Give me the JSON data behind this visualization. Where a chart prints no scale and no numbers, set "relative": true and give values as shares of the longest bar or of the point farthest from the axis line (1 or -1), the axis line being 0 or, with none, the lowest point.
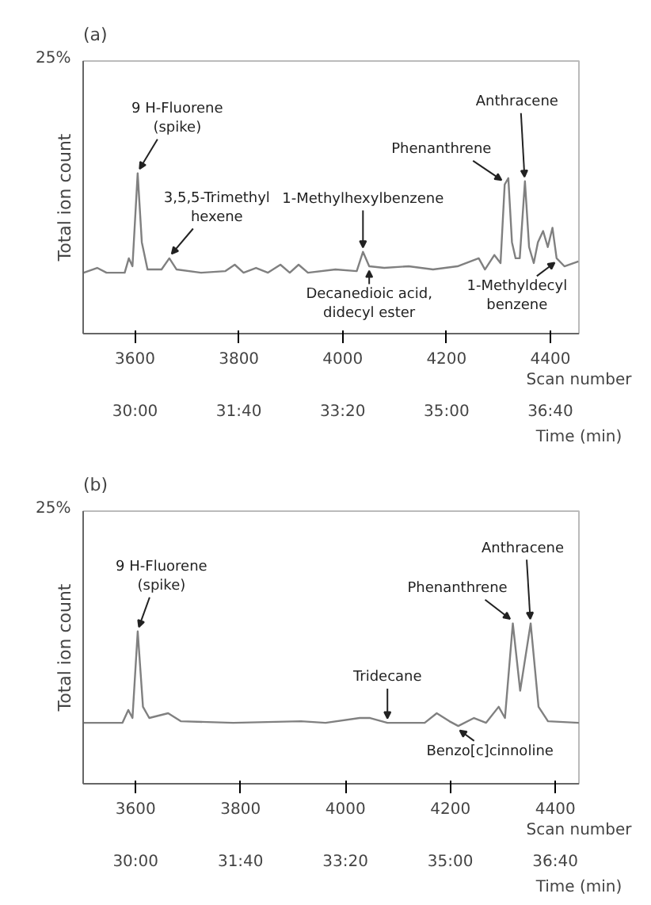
{
  "chart_data": [
    {
      "type": "line",
      "title": "(a)",
      "ylabel": "Total ion count",
      "xlabel": "Scan number",
      "x2label": "Time (min)",
      "relative": true,
      "grid": false,
      "xlim": [
        3500,
        4455
      ],
      "xticks": [
        3600,
        3800,
        4000,
        4200,
        4400
      ],
      "x2lim": [
        29.167,
        37.125
      ],
      "x2ticks": [
        {
          "value": 30,
          "label": "30:00"
        },
        {
          "value": 31.667,
          "label": "31:40"
        },
        {
          "value": 33.333,
          "label": "33:20"
        },
        {
          "value": 35,
          "label": "35:00"
        },
        {
          "value": 36.667,
          "label": "36:40"
        }
      ],
      "series": [
        {
          "color": "#808080",
          "x": [
            3501,
            3527,
            3545,
            3580,
            3588,
            3595,
            3605,
            3613,
            3624,
            3651,
            3666,
            3680,
            3727,
            3774,
            3792,
            3809,
            3833,
            3856,
            3880,
            3898,
            3915,
            3933,
            3986,
            4027,
            4039,
            4051,
            4080,
            4127,
            4174,
            4221,
            4262,
            4274,
            4292,
            4304,
            4312,
            4319,
            4326,
            4333,
            4341,
            4351,
            4359,
            4368,
            4376,
            4386,
            4395,
            4404,
            4412,
            4427,
            4454
          ],
          "values": [
            0.38,
            0.41,
            0.38,
            0.38,
            0.47,
            0.42,
            1.0,
            0.57,
            0.4,
            0.4,
            0.47,
            0.4,
            0.38,
            0.39,
            0.43,
            0.38,
            0.41,
            0.38,
            0.43,
            0.38,
            0.43,
            0.38,
            0.4,
            0.39,
            0.51,
            0.42,
            0.41,
            0.42,
            0.4,
            0.42,
            0.47,
            0.4,
            0.49,
            0.44,
            0.93,
            0.97,
            0.57,
            0.47,
            0.47,
            0.95,
            0.54,
            0.44,
            0.57,
            0.64,
            0.54,
            0.66,
            0.47,
            0.42,
            0.45
          ]
        }
      ],
      "annotations": [
        "25%",
        {
          "text": "9 H-Fluorene\n(spike)",
          "x": 3605,
          "y": 1.0
        },
        {
          "text": "3,5,5-Trimethyl\nhexene",
          "x": 3666,
          "y": 0.47
        },
        {
          "text": "1-Methylhexylbenzene",
          "x": 4039,
          "y": 0.51
        },
        {
          "text": "Decanedioic acid,\ndidecyl ester",
          "x": 4051,
          "y": 0.42
        },
        {
          "text": "Phenanthrene",
          "x": 4312,
          "y": 0.93
        },
        {
          "text": "Anthracene",
          "x": 4351,
          "y": 0.95
        },
        {
          "text": "1-Methyldecyl\nbenzene",
          "x": 4412,
          "y": 0.47
        }
      ]
    },
    {
      "type": "line",
      "title": "(b)",
      "ylabel": "Total ion count",
      "xlabel": "Scan number",
      "x2label": "Time (min)",
      "relative": true,
      "grid": false,
      "xlim": [
        3500,
        4445
      ],
      "xticks": [
        3600,
        3800,
        4000,
        4200,
        4400
      ],
      "x2lim": [
        29.167,
        37.042
      ],
      "x2ticks": [
        {
          "value": 30,
          "label": "30:00"
        },
        {
          "value": 31.667,
          "label": "31:40"
        },
        {
          "value": 33.333,
          "label": "33:20"
        },
        {
          "value": 35,
          "label": "35:00"
        },
        {
          "value": 36.667,
          "label": "36:40"
        }
      ],
      "series": [
        {
          "color": "#808080",
          "x": [
            3500,
            3575,
            3586,
            3594,
            3604,
            3614,
            3626,
            3662,
            3686,
            3786,
            3915,
            3962,
            4027,
            4047,
            4080,
            4151,
            4174,
            4198,
            4215,
            4245,
            4268,
            4292,
            4304,
            4319,
            4333,
            4353,
            4368,
            4386,
            4445
          ],
          "values": [
            0.38,
            0.38,
            0.46,
            0.41,
            0.95,
            0.48,
            0.41,
            0.44,
            0.39,
            0.38,
            0.39,
            0.38,
            0.41,
            0.41,
            0.38,
            0.38,
            0.44,
            0.39,
            0.36,
            0.41,
            0.38,
            0.48,
            0.41,
            1.0,
            0.58,
            1.0,
            0.48,
            0.39,
            0.38
          ]
        }
      ],
      "annotations": [
        "25%",
        {
          "text": "9 H-Fluorene\n(spike)",
          "x": 3604,
          "y": 0.95
        },
        {
          "text": "Tridecane",
          "x": 4080,
          "y": 0.38
        },
        {
          "text": "Benzo[c]cinnoline",
          "x": 4215,
          "y": 0.36
        },
        {
          "text": "Phenanthrene",
          "x": 4319,
          "y": 1.0
        },
        {
          "text": "Anthracene",
          "x": 4353,
          "y": 1.0
        }
      ]
    }
  ]
}
